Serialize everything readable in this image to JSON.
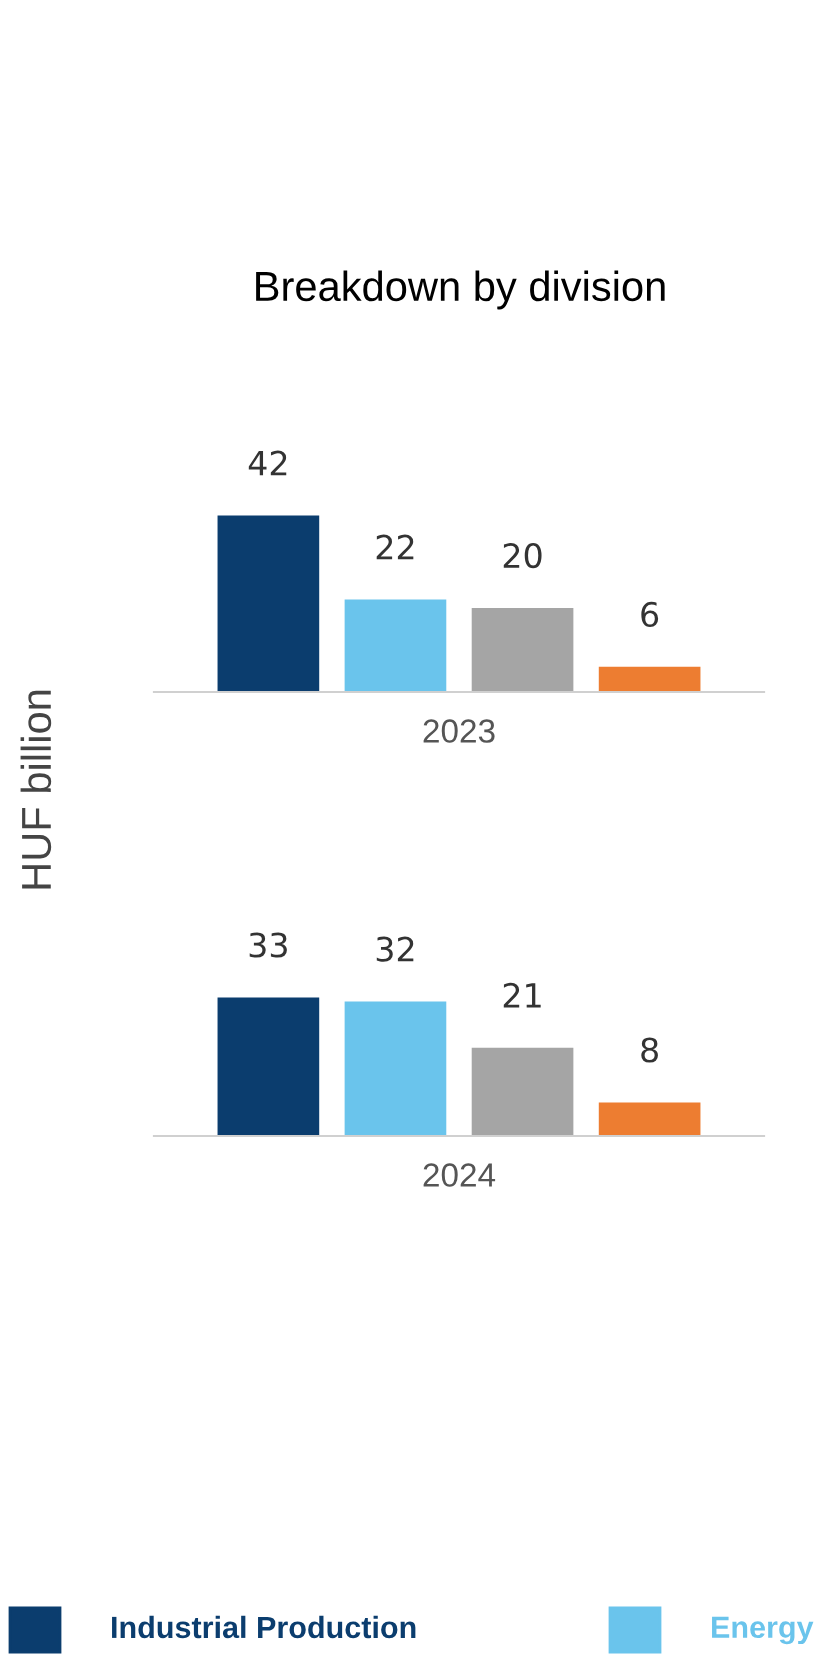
{
  "chart_data": [
    {
      "type": "bar",
      "title": "Breakdown by division",
      "ylabel": "HUF billion",
      "xlabel": "2023",
      "categories": [
        null,
        null,
        null,
        null
      ],
      "data_labels": true,
      "values": [
        42,
        22,
        20,
        6
      ],
      "colors": [
        "#0b3d6e",
        "#6ac4ec",
        "#a5a5a5",
        "#ed7d31"
      ]
    },
    {
      "type": "bar",
      "xlabel": "2024",
      "categories": [
        null,
        null,
        null,
        null
      ],
      "data_labels": true,
      "values": [
        33,
        32,
        21,
        8
      ],
      "colors": [
        "#0b3d6e",
        "#6ac4ec",
        "#a5a5a5",
        "#ed7d31"
      ],
      "annotations": [
        "Industrial Production",
        "Energy"
      ]
    }
  ]
}
